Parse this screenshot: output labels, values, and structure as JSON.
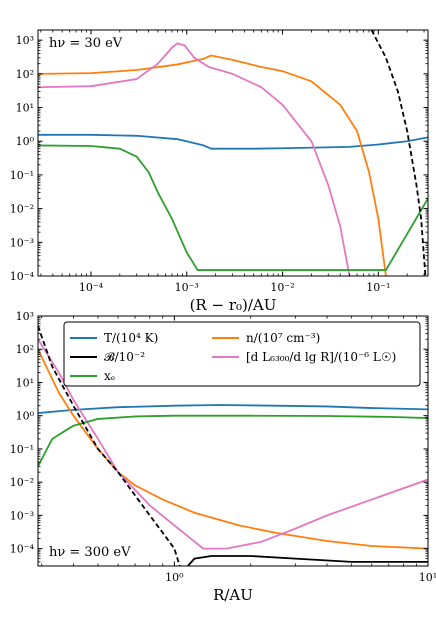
{
  "chart_data": [
    {
      "type": "line",
      "annotation": "hν = 30 eV",
      "xlabel": "(R − r₀)/AU",
      "ylabel": "",
      "xscale": "log",
      "yscale": "log",
      "xlim": [
        2.8e-05,
        0.33
      ],
      "ylim": [
        0.0001,
        2000
      ],
      "x_ticks": [
        {
          "v": 0.0001,
          "label": "10⁻⁴"
        },
        {
          "v": 0.001,
          "label": "10⁻³"
        },
        {
          "v": 0.01,
          "label": "10⁻²"
        },
        {
          "v": 0.1,
          "label": "10⁻¹"
        }
      ],
      "y_ticks": [
        {
          "v": 0.0001,
          "label": "10⁻⁴"
        },
        {
          "v": 0.001,
          "label": "10⁻³"
        },
        {
          "v": 0.01,
          "label": "10⁻²"
        },
        {
          "v": 0.1,
          "label": "10⁻¹"
        },
        {
          "v": 1,
          "label": "10⁰"
        },
        {
          "v": 10,
          "label": "10¹"
        },
        {
          "v": 100,
          "label": "10²"
        },
        {
          "v": 1000,
          "label": "10³"
        }
      ],
      "grid": false,
      "legend": "none",
      "series": [
        {
          "key": "T",
          "color": "#1f77b4",
          "dash": "",
          "points": [
            [
              2.8e-05,
              1.55
            ],
            [
              0.0001,
              1.55
            ],
            [
              0.0003,
              1.45
            ],
            [
              0.0008,
              1.15
            ],
            [
              0.0015,
              0.75
            ],
            [
              0.0018,
              0.6
            ],
            [
              0.005,
              0.6
            ],
            [
              0.01,
              0.62
            ],
            [
              0.05,
              0.68
            ],
            [
              0.1,
              0.8
            ],
            [
              0.2,
              1.0
            ],
            [
              0.33,
              1.3
            ]
          ]
        },
        {
          "key": "n",
          "color": "#ff7f0e",
          "dash": "",
          "points": [
            [
              2.8e-05,
              100
            ],
            [
              0.0001,
              105
            ],
            [
              0.0003,
              130
            ],
            [
              0.0008,
              190
            ],
            [
              0.0015,
              280
            ],
            [
              0.0018,
              350
            ],
            [
              0.003,
              260
            ],
            [
              0.006,
              160
            ],
            [
              0.01,
              120
            ],
            [
              0.02,
              60
            ],
            [
              0.04,
              12
            ],
            [
              0.06,
              2
            ],
            [
              0.08,
              0.12
            ],
            [
              0.1,
              0.005
            ],
            [
              0.12,
              0.0001
            ]
          ]
        },
        {
          "key": "L",
          "color": "#e377c2",
          "dash": "",
          "points": [
            [
              2.8e-05,
              40
            ],
            [
              0.0001,
              43
            ],
            [
              0.0003,
              70
            ],
            [
              0.0005,
              200
            ],
            [
              0.0007,
              600
            ],
            [
              0.0008,
              800
            ],
            [
              0.00095,
              700
            ],
            [
              0.0012,
              300
            ],
            [
              0.0015,
              200
            ],
            [
              0.0017,
              160
            ],
            [
              0.003,
              100
            ],
            [
              0.006,
              40
            ],
            [
              0.01,
              12
            ],
            [
              0.02,
              1
            ],
            [
              0.03,
              0.05
            ],
            [
              0.04,
              0.003
            ],
            [
              0.05,
              0.0001
            ]
          ]
        },
        {
          "key": "xe",
          "color": "#2ca02c",
          "dash": "",
          "points": [
            [
              2.8e-05,
              0.75
            ],
            [
              0.0001,
              0.72
            ],
            [
              0.0002,
              0.6
            ],
            [
              0.0003,
              0.35
            ],
            [
              0.0004,
              0.12
            ],
            [
              0.0005,
              0.03
            ],
            [
              0.0007,
              0.005
            ],
            [
              0.001,
              0.0005
            ],
            [
              0.0013,
              0.00015
            ],
            [
              0.12,
              0.00015
            ],
            [
              0.33,
              0.02
            ]
          ]
        },
        {
          "key": "B",
          "color": "#000000",
          "dash": "5,3",
          "points": [
            [
              0.085,
              2000
            ],
            [
              0.12,
              300
            ],
            [
              0.16,
              30
            ],
            [
              0.2,
              2
            ],
            [
              0.25,
              0.05
            ],
            [
              0.28,
              0.005
            ],
            [
              0.31,
              0.0001
            ]
          ]
        }
      ]
    },
    {
      "type": "line",
      "annotation": "hν = 300 eV",
      "xlabel": "R/AU",
      "ylabel": "",
      "xscale": "log",
      "yscale": "log",
      "xlim": [
        0.29,
        10
      ],
      "ylim": [
        3e-05,
        1000
      ],
      "x_ticks": [
        {
          "v": 1,
          "label": "10⁰"
        },
        {
          "v": 10,
          "label": "10¹"
        }
      ],
      "y_ticks": [
        {
          "v": 0.0001,
          "label": "10⁻⁴"
        },
        {
          "v": 0.001,
          "label": "10⁻³"
        },
        {
          "v": 0.01,
          "label": "10⁻²"
        },
        {
          "v": 0.1,
          "label": "10⁻¹"
        },
        {
          "v": 1,
          "label": "10⁰"
        },
        {
          "v": 10,
          "label": "10¹"
        },
        {
          "v": 100,
          "label": "10²"
        },
        {
          "v": 1000,
          "label": "10³"
        }
      ],
      "grid": false,
      "legend": "top",
      "legend_entries": [
        {
          "key": "T",
          "label": "T/(10⁴ K)"
        },
        {
          "key": "n",
          "label": "n/(10⁷ cm⁻³)"
        },
        {
          "key": "B",
          "label": "𝓑/10⁻²"
        },
        {
          "key": "L",
          "label": "[d L₆₃₀₀/d lg R]/(10⁻⁶ L☉)"
        },
        {
          "key": "xe",
          "label": "xₑ"
        }
      ],
      "series": [
        {
          "key": "T",
          "color": "#1f77b4",
          "dash": "",
          "points": [
            [
              0.29,
              1.2
            ],
            [
              0.4,
              1.5
            ],
            [
              0.6,
              1.8
            ],
            [
              1,
              2.0
            ],
            [
              1.5,
              2.1
            ],
            [
              2.5,
              2.0
            ],
            [
              4,
              1.9
            ],
            [
              6,
              1.7
            ],
            [
              10,
              1.55
            ]
          ]
        },
        {
          "key": "n",
          "color": "#ff7f0e",
          "dash": "",
          "points": [
            [
              0.29,
              100
            ],
            [
              0.35,
              5
            ],
            [
              0.4,
              1
            ],
            [
              0.5,
              0.1
            ],
            [
              0.6,
              0.02
            ],
            [
              0.7,
              0.008
            ],
            [
              0.9,
              0.003
            ],
            [
              1.2,
              0.0012
            ],
            [
              1.8,
              0.0005
            ],
            [
              2.5,
              0.0003
            ],
            [
              4,
              0.00017
            ],
            [
              6,
              0.00012
            ],
            [
              10,
              0.0001
            ]
          ]
        },
        {
          "key": "L",
          "color": "#e377c2",
          "dash": "",
          "points": [
            [
              0.29,
              200
            ],
            [
              0.35,
              20
            ],
            [
              0.4,
              3
            ],
            [
              0.5,
              0.2
            ],
            [
              0.6,
              0.02
            ],
            [
              0.8,
              0.002
            ],
            [
              1.0,
              0.0005
            ],
            [
              1.3,
              0.0001
            ],
            [
              1.6,
              0.0001
            ],
            [
              2.2,
              0.00016
            ],
            [
              3,
              0.0004
            ],
            [
              4,
              0.001
            ],
            [
              6,
              0.003
            ],
            [
              10,
              0.012
            ]
          ]
        },
        {
          "key": "xe",
          "color": "#2ca02c",
          "dash": "",
          "points": [
            [
              0.29,
              0.03
            ],
            [
              0.33,
              0.2
            ],
            [
              0.4,
              0.5
            ],
            [
              0.5,
              0.8
            ],
            [
              0.7,
              0.95
            ],
            [
              1,
              1.0
            ],
            [
              2,
              1.0
            ],
            [
              4,
              0.98
            ],
            [
              7,
              0.92
            ],
            [
              10,
              0.85
            ]
          ]
        },
        {
          "key": "B",
          "color": "#000000",
          "dash": "5,3",
          "points": [
            [
              0.29,
              500
            ],
            [
              0.33,
              30
            ],
            [
              0.4,
              2
            ],
            [
              0.5,
              0.1
            ],
            [
              0.6,
              0.02
            ],
            [
              0.7,
              0.004
            ],
            [
              0.8,
              0.001
            ],
            [
              0.9,
              0.0003
            ],
            [
              1.0,
              0.0001
            ],
            [
              1.05,
              3e-05
            ]
          ]
        },
        {
          "key": "B2",
          "color": "#000000",
          "dash": "",
          "points": [
            [
              1.13,
              3e-05
            ],
            [
              1.2,
              5e-05
            ],
            [
              1.4,
              6e-05
            ],
            [
              2,
              6e-05
            ],
            [
              3,
              5e-05
            ],
            [
              5,
              4e-05
            ],
            [
              10,
              4e-05
            ]
          ]
        }
      ]
    }
  ]
}
